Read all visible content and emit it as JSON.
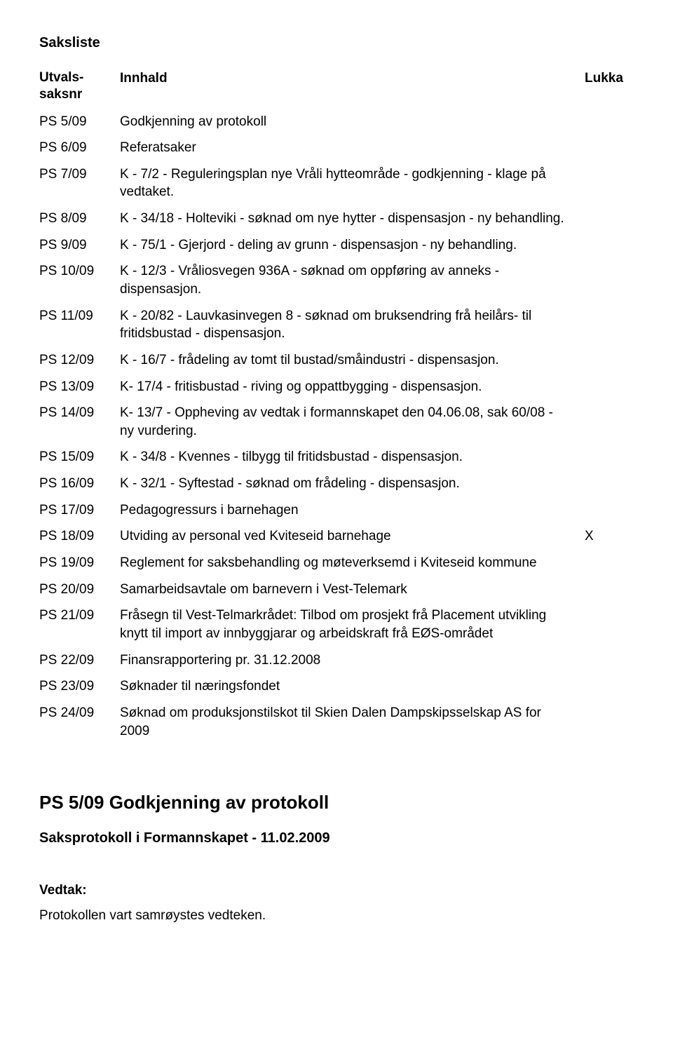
{
  "title": "Saksliste",
  "header": {
    "col1a": "Utvals-",
    "col1b": "saksnr",
    "col2": "Innhald",
    "col3": "Lukka"
  },
  "rows": [
    {
      "nr": "PS 5/09",
      "text": "Godkjenning av protokoll",
      "lukka": ""
    },
    {
      "nr": "PS 6/09",
      "text": "Referatsaker",
      "lukka": ""
    },
    {
      "nr": "PS 7/09",
      "text": "K - 7/2 - Reguleringsplan nye Vråli hytteområde - godkjenning - klage på vedtaket.",
      "lukka": ""
    },
    {
      "nr": "PS 8/09",
      "text": "K - 34/18 - Holteviki - søknad om nye hytter - dispensasjon - ny behandling.",
      "lukka": ""
    },
    {
      "nr": "PS 9/09",
      "text": "K - 75/1 - Gjerjord - deling av grunn - dispensasjon - ny behandling.",
      "lukka": ""
    },
    {
      "nr": "PS 10/09",
      "text": "K - 12/3 - Vråliosvegen 936A - søknad om oppføring av anneks - dispensasjon.",
      "lukka": ""
    },
    {
      "nr": "PS 11/09",
      "text": "K - 20/82 - Lauvkasinvegen 8 - søknad om bruksendring frå heilårs- til fritidsbustad - dispensasjon.",
      "lukka": ""
    },
    {
      "nr": "PS 12/09",
      "text": "K - 16/7 - frådeling av tomt til bustad/småindustri - dispensasjon.",
      "lukka": ""
    },
    {
      "nr": "PS 13/09",
      "text": "K- 17/4 - fritisbustad - riving og oppattbygging - dispensasjon.",
      "lukka": ""
    },
    {
      "nr": "PS 14/09",
      "text": "K- 13/7 - Oppheving av vedtak i formannskapet den 04.06.08, sak 60/08 - ny vurdering.",
      "lukka": ""
    },
    {
      "nr": "PS 15/09",
      "text": "K - 34/8 - Kvennes - tilbygg til fritidsbustad - dispensasjon.",
      "lukka": ""
    },
    {
      "nr": "PS 16/09",
      "text": "K - 32/1 - Syftestad - søknad om frådeling - dispensasjon.",
      "lukka": ""
    },
    {
      "nr": "PS 17/09",
      "text": "Pedagogressurs i barnehagen",
      "lukka": ""
    },
    {
      "nr": "PS 18/09",
      "text": "Utviding av personal ved Kviteseid barnehage",
      "lukka": "X"
    },
    {
      "nr": "PS 19/09",
      "text": "Reglement for saksbehandling og møteverksemd i Kviteseid kommune",
      "lukka": ""
    },
    {
      "nr": "PS 20/09",
      "text": "Samarbeidsavtale om barnevern i Vest-Telemark",
      "lukka": ""
    },
    {
      "nr": "PS 21/09",
      "text": "Fråsegn til Vest-Telmarkrådet: Tilbod om prosjekt frå Placement utvikling knytt til import av innbyggjarar og arbeidskraft frå EØS-området",
      "lukka": ""
    },
    {
      "nr": "PS 22/09",
      "text": "Finansrapportering pr. 31.12.2008",
      "lukka": ""
    },
    {
      "nr": "PS 23/09",
      "text": "Søknader til næringsfondet",
      "lukka": ""
    },
    {
      "nr": "PS 24/09",
      "text": "Søknad om produksjonstilskot til Skien Dalen Dampskipsselskap AS for 2009",
      "lukka": ""
    }
  ],
  "section": {
    "heading": "PS 5/09 Godkjenning av protokoll",
    "subheading": "Saksprotokoll i Formannskapet - 11.02.2009",
    "vedtak_label": "Vedtak:",
    "vedtak_text": "Protokollen vart samrøystes vedteken."
  }
}
